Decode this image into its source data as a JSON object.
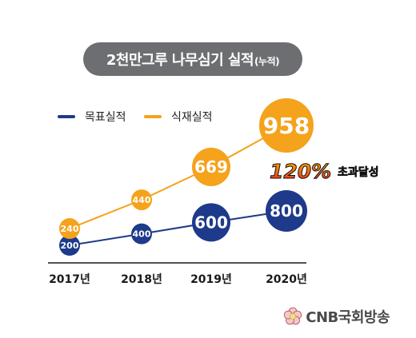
{
  "title": {
    "main": "2천만그루 나무심기 실적",
    "sub": "(누적)"
  },
  "legend": [
    {
      "label": "목표실적",
      "color": "#1e3a8a"
    },
    {
      "label": "식재실적",
      "color": "#f5a21c"
    }
  ],
  "chart_data": {
    "type": "line",
    "categories": [
      "2017년",
      "2018년",
      "2019년",
      "2020년"
    ],
    "series": [
      {
        "name": "목표실적",
        "values": [
          200,
          400,
          600,
          800
        ],
        "color": "#1e3a8a"
      },
      {
        "name": "식재실적",
        "values": [
          240,
          440,
          669,
          958
        ],
        "color": "#f5a21c"
      }
    ]
  },
  "annotation": {
    "value": "120%",
    "text": "초과달성"
  },
  "brand": {
    "name": "CNB국회방송"
  }
}
